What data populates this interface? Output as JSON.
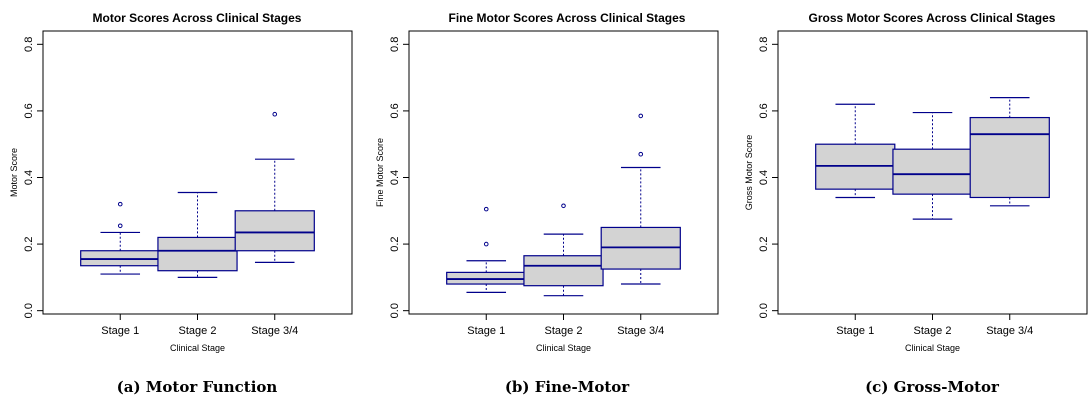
{
  "chart_data": [
    {
      "type": "box",
      "title": "Motor Scores Across Clinical Stages",
      "xlabel": "Clinical Stage",
      "ylabel": "Motor Score",
      "caption": "(a) Motor Function",
      "categories": [
        "Stage 1",
        "Stage 2",
        "Stage 3/4"
      ],
      "ylim": [
        -0.01,
        0.84
      ],
      "yticks": [
        "0.0",
        "0.2",
        "0.4",
        "0.6",
        "0.8"
      ],
      "boxes": [
        {
          "whisker_low": 0.11,
          "q1": 0.135,
          "median": 0.155,
          "q3": 0.18,
          "whisker_high": 0.235,
          "outliers": [
            0.255,
            0.32
          ]
        },
        {
          "whisker_low": 0.1,
          "q1": 0.12,
          "median": 0.18,
          "q3": 0.22,
          "whisker_high": 0.355,
          "outliers": []
        },
        {
          "whisker_low": 0.145,
          "q1": 0.18,
          "median": 0.235,
          "q3": 0.3,
          "whisker_high": 0.455,
          "outliers": [
            0.59
          ]
        }
      ],
      "colors": {
        "box_fill": "#d3d3d3",
        "box_stroke": "#00008b"
      }
    },
    {
      "type": "box",
      "title": "Fine Motor Scores Across Clinical Stages",
      "xlabel": "Clinical Stage",
      "ylabel": "Fine Motor Score",
      "caption": "(b) Fine-Motor",
      "categories": [
        "Stage 1",
        "Stage 2",
        "Stage 3/4"
      ],
      "ylim": [
        -0.01,
        0.84
      ],
      "yticks": [
        "0.0",
        "0.2",
        "0.4",
        "0.6",
        "0.8"
      ],
      "boxes": [
        {
          "whisker_low": 0.055,
          "q1": 0.08,
          "median": 0.095,
          "q3": 0.115,
          "whisker_high": 0.15,
          "outliers": [
            0.2,
            0.305
          ]
        },
        {
          "whisker_low": 0.045,
          "q1": 0.075,
          "median": 0.135,
          "q3": 0.165,
          "whisker_high": 0.23,
          "outliers": [
            0.315
          ]
        },
        {
          "whisker_low": 0.08,
          "q1": 0.125,
          "median": 0.19,
          "q3": 0.25,
          "whisker_high": 0.43,
          "outliers": [
            0.47,
            0.585
          ]
        }
      ],
      "colors": {
        "box_fill": "#d3d3d3",
        "box_stroke": "#00008b"
      }
    },
    {
      "type": "box",
      "title": "Gross Motor Scores Across Clinical Stages",
      "xlabel": "Clinical Stage",
      "ylabel": "Gross Motor Score",
      "caption": "(c) Gross-Motor",
      "categories": [
        "Stage 1",
        "Stage 2",
        "Stage 3/4"
      ],
      "ylim": [
        -0.01,
        0.84
      ],
      "yticks": [
        "0.0",
        "0.2",
        "0.4",
        "0.6",
        "0.8"
      ],
      "boxes": [
        {
          "whisker_low": 0.34,
          "q1": 0.365,
          "median": 0.435,
          "q3": 0.5,
          "whisker_high": 0.62,
          "outliers": []
        },
        {
          "whisker_low": 0.275,
          "q1": 0.35,
          "median": 0.41,
          "q3": 0.485,
          "whisker_high": 0.595,
          "outliers": []
        },
        {
          "whisker_low": 0.315,
          "q1": 0.34,
          "median": 0.53,
          "q3": 0.58,
          "whisker_high": 0.64,
          "outliers": []
        }
      ],
      "colors": {
        "box_fill": "#d3d3d3",
        "box_stroke": "#00008b"
      }
    }
  ]
}
